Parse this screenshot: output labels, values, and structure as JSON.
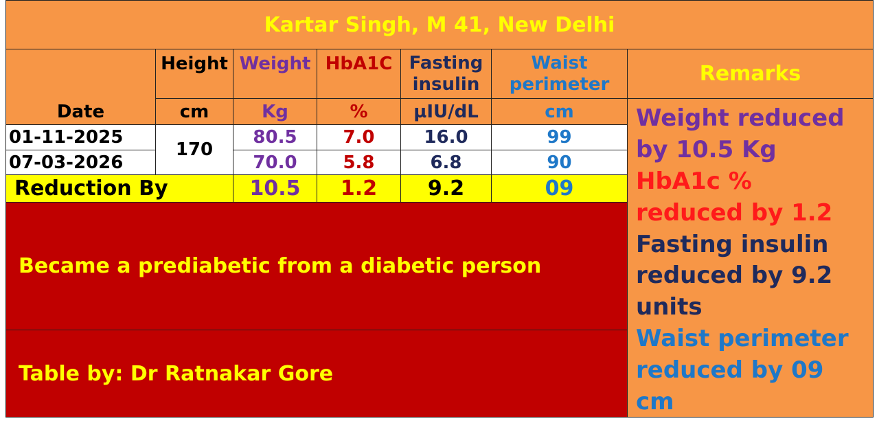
{
  "title": "Kartar Singh, M 41, New Delhi",
  "headers": {
    "date": "Date",
    "height": "Height",
    "weight": "Weight",
    "hba1c": "HbA1C",
    "fasting": "Fasting\ninsulin",
    "waist": "Waist\nperimeter",
    "remarks": "Remarks"
  },
  "units": {
    "height": "cm",
    "weight": "Kg",
    "hba1c": "%",
    "fasting": "µIU/dL",
    "waist": "cm"
  },
  "rows": [
    {
      "date": "01-11-2025",
      "weight": "80.5",
      "hba1c": "7.0",
      "fasting": "16.0",
      "waist": "99"
    },
    {
      "date": "07-03-2026",
      "weight": "70.0",
      "hba1c": "5.8",
      "fasting": "6.8",
      "waist": "90"
    }
  ],
  "height_value": "170",
  "reduction": {
    "label": "Reduction By",
    "weight": "10.5",
    "hba1c": "1.2",
    "fasting": "9.2",
    "waist": "09"
  },
  "message": "Became a prediabetic from a diabetic person",
  "credit": "Table by: Dr Ratnakar Gore",
  "remarks": [
    "Weight reduced\nby 10.5 Kg",
    "HbA1c %\nreduced by 1.2",
    "Fasting insulin\nreduced by 9.2\nunits",
    "Waist perimeter\nreduced by 09\ncm"
  ],
  "colors": {
    "title": "#ffff00",
    "weight": "#7030a0",
    "hba1c": "#c00000",
    "fasting": "#1f2a5c",
    "waist": "#1f78c8",
    "remark_hba1c": "#ff1a1a"
  }
}
